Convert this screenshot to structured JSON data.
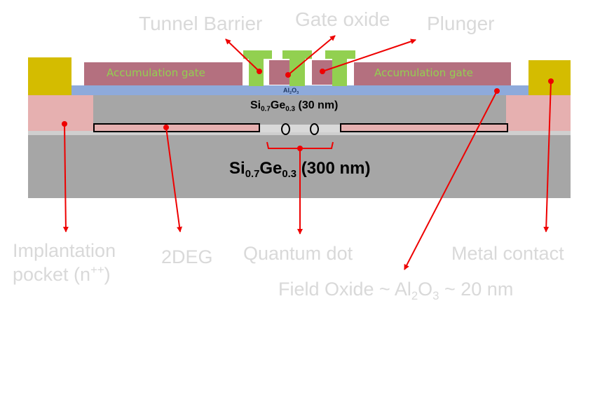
{
  "labels": {
    "tunnel_barrier": "Tunnel Barrier",
    "gate_oxide": "Gate oxide",
    "plunger": "Plunger",
    "implantation_line1": "Implantation",
    "implantation_line2_base": "pocket (n",
    "implantation_line2_sup": "++",
    "implantation_line2_end": ")",
    "two_deg": "2DEG",
    "quantum_dot": "Quantum dot",
    "metal_contact": "Metal contact",
    "field_oxide_prefix": "Field Oxide ~ Al",
    "field_oxide_sub1": "2",
    "field_oxide_mid": "O",
    "field_oxide_sub2": "3",
    "field_oxide_suffix": "~ 20 nm"
  },
  "structure": {
    "accumulation_gate_left": "Accumulation gate",
    "accumulation_gate_right": "Accumulation gate",
    "al2o3_prefix": "Al",
    "al2o3_sub1": "2",
    "al2o3_mid": "O",
    "al2o3_sub2": "3",
    "thin_layer_base": "Si",
    "thin_layer_sub1": "0.7",
    "thin_layer_mid": "Ge",
    "thin_layer_sub2": "0.3",
    "thin_layer_thickness": "(30 nm)",
    "thick_layer_base": "Si",
    "thick_layer_sub1": "0.7",
    "thick_layer_mid": "Ge",
    "thick_layer_sub2": "0.3",
    "thick_layer_thickness": "(300 nm)"
  },
  "colors": {
    "substrate": "#a6a6a6",
    "oxide": "#8eaadb",
    "accumulation_gate": "#b4707f",
    "barrier_gate": "#92d050",
    "metal_contact": "#d4bc00",
    "implant": "#e6b0b0",
    "arrow": "#ee0000",
    "label": "#d9d9d9"
  }
}
